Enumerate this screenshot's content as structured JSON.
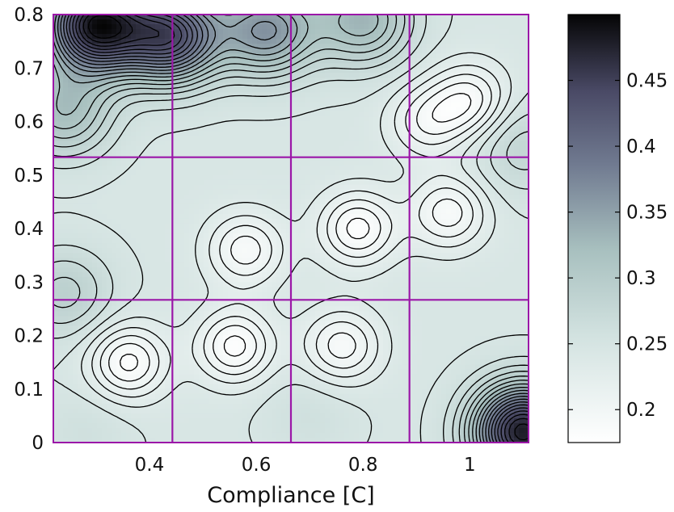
{
  "chart_data": {
    "type": "heatmap",
    "title": "",
    "xlabel": "Compliance [C]",
    "ylabel": "",
    "xlim": [
      0.22,
      1.11
    ],
    "ylim": [
      0,
      0.8
    ],
    "x_ticks": [
      "0.4",
      "0.6",
      "0.8",
      "1"
    ],
    "x_tick_values": [
      0.4,
      0.6,
      0.8,
      1.0
    ],
    "y_ticks": [
      "0",
      "0.1",
      "0.2",
      "0.3",
      "0.4",
      "0.5",
      "0.6",
      "0.7",
      "0.8"
    ],
    "y_tick_values": [
      0,
      0.1,
      0.2,
      0.3,
      0.4,
      0.5,
      0.6,
      0.7,
      0.8
    ],
    "colorbar": {
      "range": [
        0.175,
        0.5
      ],
      "ticks": [
        "0.2",
        "0.25",
        "0.3",
        "0.35",
        "0.4",
        "0.45"
      ],
      "tick_values": [
        0.2,
        0.25,
        0.3,
        0.35,
        0.4,
        0.45
      ],
      "colormap": "bone-reversed"
    },
    "grid_lines": {
      "x": [
        0.443,
        0.665,
        0.887
      ],
      "y": [
        0.2667,
        0.5333
      ],
      "color": "#9b17a8"
    },
    "contour_line_color": "#000000",
    "series": [
      {
        "z_peaks": [
          {
            "x": 0.3,
            "y": 0.78,
            "value": 0.48
          },
          {
            "x": 0.44,
            "y": 0.76,
            "value": 0.43
          },
          {
            "x": 0.62,
            "y": 0.77,
            "value": 0.36
          },
          {
            "x": 0.8,
            "y": 0.79,
            "value": 0.33
          },
          {
            "x": 0.24,
            "y": 0.62,
            "value": 0.32
          },
          {
            "x": 1.1,
            "y": 0.02,
            "value": 0.48
          },
          {
            "x": 1.1,
            "y": 0.55,
            "value": 0.28
          },
          {
            "x": 0.24,
            "y": 0.28,
            "value": 0.29
          },
          {
            "x": 0.7,
            "y": 0.05,
            "value": 0.26
          },
          {
            "x": 0.28,
            "y": 0.02,
            "value": 0.26
          }
        ],
        "z_valleys": [
          {
            "x": 0.36,
            "y": 0.15,
            "value": 0.18
          },
          {
            "x": 0.56,
            "y": 0.18,
            "value": 0.18
          },
          {
            "x": 0.79,
            "y": 0.4,
            "value": 0.18
          },
          {
            "x": 0.96,
            "y": 0.43,
            "value": 0.19
          },
          {
            "x": 1.0,
            "y": 0.64,
            "value": 0.19
          },
          {
            "x": 0.58,
            "y": 0.36,
            "value": 0.19
          },
          {
            "x": 0.76,
            "y": 0.18,
            "value": 0.19
          },
          {
            "x": 0.92,
            "y": 0.6,
            "value": 0.2
          }
        ]
      }
    ]
  }
}
